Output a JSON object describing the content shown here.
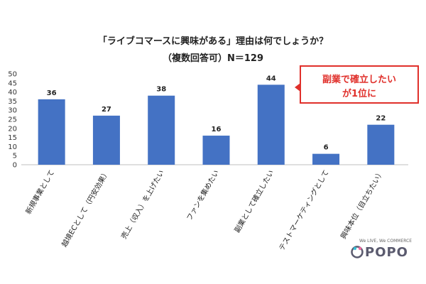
{
  "title_line1": "「ライブコマースに興味がある」理由は何でしょうか？",
  "title_line2": "（複数回答可）N＝129",
  "callout": {
    "line1": "副業で確立したい",
    "line2": "が1位に",
    "color": "#e0302b"
  },
  "logo": {
    "tagline": "We LIVE, We COMMERCE",
    "name": "POPO"
  },
  "colors": {
    "bar": "#4472c4",
    "bar_dark": "#2f57a6"
  },
  "chart_data": {
    "type": "bar",
    "title": "「ライブコマースに興味がある」理由は何でしょうか？",
    "subtitle": "（複数回答可）N＝129",
    "categories": [
      "新規事業として",
      "越境ECとして（円安効果）",
      "売上（収入）を上げたい",
      "ファンを集めたい",
      "副業として確立したい",
      "テストマーケティングとして",
      "興味本位（目立ちたい）"
    ],
    "values": [
      36,
      27,
      38,
      16,
      44,
      6,
      22
    ],
    "ylim": [
      0,
      50
    ],
    "yticks": [
      0,
      5,
      10,
      15,
      20,
      25,
      30,
      35,
      40,
      45,
      50
    ],
    "xlabel": "",
    "ylabel": "",
    "grid": false,
    "legend": "none"
  }
}
